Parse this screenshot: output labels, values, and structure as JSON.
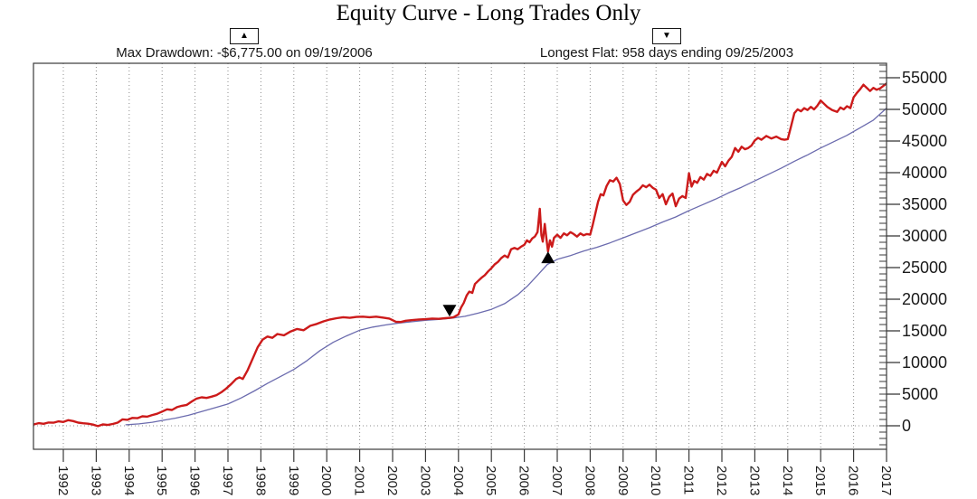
{
  "annotations": {
    "max_drawdown": {
      "marker_glyph": "▲",
      "label": "Max Drawdown: -$6,775.00 on 09/19/2006"
    },
    "longest_flat": {
      "marker_glyph": "▼",
      "label": "Longest Flat: 958 days ending 09/25/2003"
    }
  },
  "colors": {
    "equity_line": "#cc1a1a",
    "reference_line": "#6b6bae",
    "grid": "#8c8c8c",
    "axis": "#3a3a3a",
    "text": "#1a1a1a",
    "marker": "#000000",
    "background": "#ffffff"
  },
  "chart_data": {
    "type": "line",
    "title": "Equity Curve - Long Trades Only",
    "xlabel": "",
    "ylabel": "",
    "x_ticks": [
      1992,
      1993,
      1994,
      1995,
      1996,
      1997,
      1998,
      1999,
      2000,
      2001,
      2002,
      2003,
      2004,
      2005,
      2006,
      2007,
      2008,
      2009,
      2010,
      2011,
      2012,
      2013,
      2014,
      2015,
      2016,
      2017
    ],
    "y_ticks": [
      0,
      5000,
      10000,
      15000,
      20000,
      25000,
      30000,
      35000,
      40000,
      45000,
      50000,
      55000
    ],
    "y_minor_step": 1000,
    "xlim": [
      1991.09,
      2017.0
    ],
    "ylim": [
      -3714,
      57285
    ],
    "grid": "vertical-dotted-yearlines-and-dotted-zero-line",
    "legend_position": "none",
    "markers": [
      {
        "glyph": "▼",
        "x": 2003.73,
        "value": 17250
      },
      {
        "glyph": "▲",
        "x": 2006.72,
        "value": 27550
      }
    ],
    "series": [
      {
        "name": "equity",
        "color": "#cc1a1a",
        "width": 2.4,
        "points": [
          [
            1991.09,
            200
          ],
          [
            1991.25,
            420
          ],
          [
            1991.4,
            320
          ],
          [
            1991.55,
            520
          ],
          [
            1991.7,
            480
          ],
          [
            1991.85,
            700
          ],
          [
            1992.0,
            600
          ],
          [
            1992.15,
            880
          ],
          [
            1992.3,
            740
          ],
          [
            1992.45,
            500
          ],
          [
            1992.6,
            400
          ],
          [
            1992.75,
            330
          ],
          [
            1992.9,
            180
          ],
          [
            1993.05,
            -50
          ],
          [
            1993.2,
            220
          ],
          [
            1993.35,
            130
          ],
          [
            1993.5,
            280
          ],
          [
            1993.65,
            500
          ],
          [
            1993.8,
            1020
          ],
          [
            1993.95,
            950
          ],
          [
            1994.1,
            1250
          ],
          [
            1994.25,
            1200
          ],
          [
            1994.4,
            1500
          ],
          [
            1994.55,
            1450
          ],
          [
            1994.7,
            1700
          ],
          [
            1994.85,
            1900
          ],
          [
            1995.0,
            2250
          ],
          [
            1995.15,
            2600
          ],
          [
            1995.3,
            2500
          ],
          [
            1995.45,
            2950
          ],
          [
            1995.6,
            3150
          ],
          [
            1995.75,
            3300
          ],
          [
            1995.9,
            3850
          ],
          [
            1996.05,
            4300
          ],
          [
            1996.2,
            4500
          ],
          [
            1996.35,
            4400
          ],
          [
            1996.5,
            4600
          ],
          [
            1996.65,
            4850
          ],
          [
            1996.8,
            5300
          ],
          [
            1996.95,
            5900
          ],
          [
            1997.1,
            6600
          ],
          [
            1997.25,
            7400
          ],
          [
            1997.35,
            7650
          ],
          [
            1997.45,
            7400
          ],
          [
            1997.6,
            8800
          ],
          [
            1997.75,
            10600
          ],
          [
            1997.9,
            12400
          ],
          [
            1998.05,
            13600
          ],
          [
            1998.2,
            14100
          ],
          [
            1998.35,
            13900
          ],
          [
            1998.5,
            14500
          ],
          [
            1998.7,
            14300
          ],
          [
            1998.9,
            14900
          ],
          [
            1999.1,
            15300
          ],
          [
            1999.3,
            15100
          ],
          [
            1999.5,
            15800
          ],
          [
            1999.7,
            16100
          ],
          [
            1999.9,
            16500
          ],
          [
            2000.1,
            16800
          ],
          [
            2000.3,
            17000
          ],
          [
            2000.5,
            17150
          ],
          [
            2000.7,
            17050
          ],
          [
            2000.9,
            17200
          ],
          [
            2001.1,
            17250
          ],
          [
            2001.3,
            17150
          ],
          [
            2001.5,
            17250
          ],
          [
            2001.7,
            17100
          ],
          [
            2001.9,
            16950
          ],
          [
            2002.1,
            16450
          ],
          [
            2002.25,
            16400
          ],
          [
            2002.4,
            16600
          ],
          [
            2002.6,
            16700
          ],
          [
            2002.8,
            16800
          ],
          [
            2003.0,
            16850
          ],
          [
            2003.2,
            16950
          ],
          [
            2003.4,
            16900
          ],
          [
            2003.6,
            17000
          ],
          [
            2003.73,
            17050
          ],
          [
            2003.85,
            17150
          ],
          [
            2004.0,
            17600
          ],
          [
            2004.08,
            18700
          ],
          [
            2004.16,
            19400
          ],
          [
            2004.25,
            20600
          ],
          [
            2004.33,
            21200
          ],
          [
            2004.42,
            21000
          ],
          [
            2004.5,
            22400
          ],
          [
            2004.6,
            22900
          ],
          [
            2004.7,
            23400
          ],
          [
            2004.8,
            23800
          ],
          [
            2004.9,
            24400
          ],
          [
            2005.0,
            24900
          ],
          [
            2005.1,
            25500
          ],
          [
            2005.2,
            25900
          ],
          [
            2005.3,
            26500
          ],
          [
            2005.4,
            26900
          ],
          [
            2005.5,
            26600
          ],
          [
            2005.6,
            27900
          ],
          [
            2005.7,
            28100
          ],
          [
            2005.8,
            27900
          ],
          [
            2005.9,
            28300
          ],
          [
            2006.0,
            28600
          ],
          [
            2006.08,
            29300
          ],
          [
            2006.16,
            29000
          ],
          [
            2006.24,
            29600
          ],
          [
            2006.32,
            29900
          ],
          [
            2006.4,
            30600
          ],
          [
            2006.47,
            34300
          ],
          [
            2006.52,
            30100
          ],
          [
            2006.56,
            29100
          ],
          [
            2006.62,
            31900
          ],
          [
            2006.67,
            29600
          ],
          [
            2006.72,
            27550
          ],
          [
            2006.78,
            29300
          ],
          [
            2006.84,
            28300
          ],
          [
            2006.9,
            29700
          ],
          [
            2007.0,
            30200
          ],
          [
            2007.1,
            29700
          ],
          [
            2007.2,
            30400
          ],
          [
            2007.3,
            30100
          ],
          [
            2007.4,
            30600
          ],
          [
            2007.5,
            30300
          ],
          [
            2007.6,
            29900
          ],
          [
            2007.7,
            30400
          ],
          [
            2007.8,
            30100
          ],
          [
            2007.9,
            30300
          ],
          [
            2008.0,
            30200
          ],
          [
            2008.08,
            31800
          ],
          [
            2008.16,
            33600
          ],
          [
            2008.24,
            35400
          ],
          [
            2008.32,
            36600
          ],
          [
            2008.4,
            36400
          ],
          [
            2008.5,
            37900
          ],
          [
            2008.6,
            38800
          ],
          [
            2008.7,
            38600
          ],
          [
            2008.8,
            39200
          ],
          [
            2008.9,
            38200
          ],
          [
            2009.0,
            35600
          ],
          [
            2009.1,
            34900
          ],
          [
            2009.2,
            35400
          ],
          [
            2009.3,
            36500
          ],
          [
            2009.4,
            37000
          ],
          [
            2009.5,
            37400
          ],
          [
            2009.6,
            38000
          ],
          [
            2009.7,
            37700
          ],
          [
            2009.8,
            38100
          ],
          [
            2009.9,
            37600
          ],
          [
            2010.0,
            37300
          ],
          [
            2010.1,
            36000
          ],
          [
            2010.2,
            36600
          ],
          [
            2010.3,
            35000
          ],
          [
            2010.4,
            36200
          ],
          [
            2010.5,
            36700
          ],
          [
            2010.6,
            34700
          ],
          [
            2010.7,
            35900
          ],
          [
            2010.8,
            36300
          ],
          [
            2010.9,
            36000
          ],
          [
            2011.0,
            39900
          ],
          [
            2011.08,
            37800
          ],
          [
            2011.16,
            38700
          ],
          [
            2011.25,
            38400
          ],
          [
            2011.35,
            39300
          ],
          [
            2011.45,
            38900
          ],
          [
            2011.55,
            39800
          ],
          [
            2011.65,
            39500
          ],
          [
            2011.75,
            40300
          ],
          [
            2011.85,
            40000
          ],
          [
            2012.0,
            41700
          ],
          [
            2012.1,
            41000
          ],
          [
            2012.2,
            41900
          ],
          [
            2012.3,
            42500
          ],
          [
            2012.4,
            43900
          ],
          [
            2012.5,
            43300
          ],
          [
            2012.6,
            44100
          ],
          [
            2012.7,
            43700
          ],
          [
            2012.8,
            43900
          ],
          [
            2012.9,
            44300
          ],
          [
            2013.0,
            45100
          ],
          [
            2013.1,
            45500
          ],
          [
            2013.2,
            45200
          ],
          [
            2013.35,
            45800
          ],
          [
            2013.5,
            45400
          ],
          [
            2013.65,
            45700
          ],
          [
            2013.8,
            45300
          ],
          [
            2013.9,
            45200
          ],
          [
            2014.0,
            45300
          ],
          [
            2014.1,
            47300
          ],
          [
            2014.2,
            49400
          ],
          [
            2014.3,
            50000
          ],
          [
            2014.4,
            49700
          ],
          [
            2014.5,
            50200
          ],
          [
            2014.6,
            49900
          ],
          [
            2014.7,
            50400
          ],
          [
            2014.8,
            50000
          ],
          [
            2014.9,
            50600
          ],
          [
            2015.0,
            51400
          ],
          [
            2015.1,
            50900
          ],
          [
            2015.2,
            50400
          ],
          [
            2015.35,
            49900
          ],
          [
            2015.5,
            49600
          ],
          [
            2015.6,
            50300
          ],
          [
            2015.7,
            50000
          ],
          [
            2015.8,
            50500
          ],
          [
            2015.9,
            50200
          ],
          [
            2016.0,
            51900
          ],
          [
            2016.1,
            52600
          ],
          [
            2016.2,
            53200
          ],
          [
            2016.3,
            53900
          ],
          [
            2016.4,
            53400
          ],
          [
            2016.5,
            52900
          ],
          [
            2016.6,
            53400
          ],
          [
            2016.7,
            53100
          ],
          [
            2016.8,
            53300
          ],
          [
            2016.9,
            53700
          ],
          [
            2017.0,
            54100
          ]
        ]
      },
      {
        "name": "reference",
        "color": "#6b6bae",
        "width": 1.3,
        "points": [
          [
            1993.9,
            150
          ],
          [
            1994.3,
            300
          ],
          [
            1994.7,
            550
          ],
          [
            1995.0,
            850
          ],
          [
            1995.4,
            1200
          ],
          [
            1995.8,
            1650
          ],
          [
            1996.2,
            2250
          ],
          [
            1996.6,
            2850
          ],
          [
            1997.0,
            3450
          ],
          [
            1997.4,
            4400
          ],
          [
            1997.8,
            5500
          ],
          [
            1998.2,
            6700
          ],
          [
            1998.6,
            7800
          ],
          [
            1999.0,
            8900
          ],
          [
            1999.4,
            10300
          ],
          [
            1999.8,
            11900
          ],
          [
            2000.2,
            13200
          ],
          [
            2000.6,
            14200
          ],
          [
            2001.0,
            15100
          ],
          [
            2001.4,
            15600
          ],
          [
            2001.8,
            15950
          ],
          [
            2002.2,
            16250
          ],
          [
            2002.6,
            16450
          ],
          [
            2003.0,
            16650
          ],
          [
            2003.4,
            16800
          ],
          [
            2003.8,
            17000
          ],
          [
            2004.2,
            17300
          ],
          [
            2004.6,
            17800
          ],
          [
            2005.0,
            18400
          ],
          [
            2005.4,
            19300
          ],
          [
            2005.8,
            20700
          ],
          [
            2006.1,
            22100
          ],
          [
            2006.4,
            23800
          ],
          [
            2006.7,
            25500
          ],
          [
            2007.0,
            26300
          ],
          [
            2007.4,
            26900
          ],
          [
            2007.8,
            27600
          ],
          [
            2008.2,
            28200
          ],
          [
            2008.6,
            28900
          ],
          [
            2009.0,
            29700
          ],
          [
            2009.4,
            30500
          ],
          [
            2009.8,
            31300
          ],
          [
            2010.2,
            32200
          ],
          [
            2010.6,
            33000
          ],
          [
            2011.0,
            34000
          ],
          [
            2011.4,
            34900
          ],
          [
            2011.8,
            35800
          ],
          [
            2012.2,
            36800
          ],
          [
            2012.6,
            37700
          ],
          [
            2013.0,
            38700
          ],
          [
            2013.4,
            39700
          ],
          [
            2013.8,
            40700
          ],
          [
            2014.2,
            41800
          ],
          [
            2014.6,
            42800
          ],
          [
            2015.0,
            43900
          ],
          [
            2015.4,
            44900
          ],
          [
            2015.8,
            45900
          ],
          [
            2016.2,
            47100
          ],
          [
            2016.6,
            48300
          ],
          [
            2017.0,
            50200
          ]
        ]
      }
    ]
  }
}
